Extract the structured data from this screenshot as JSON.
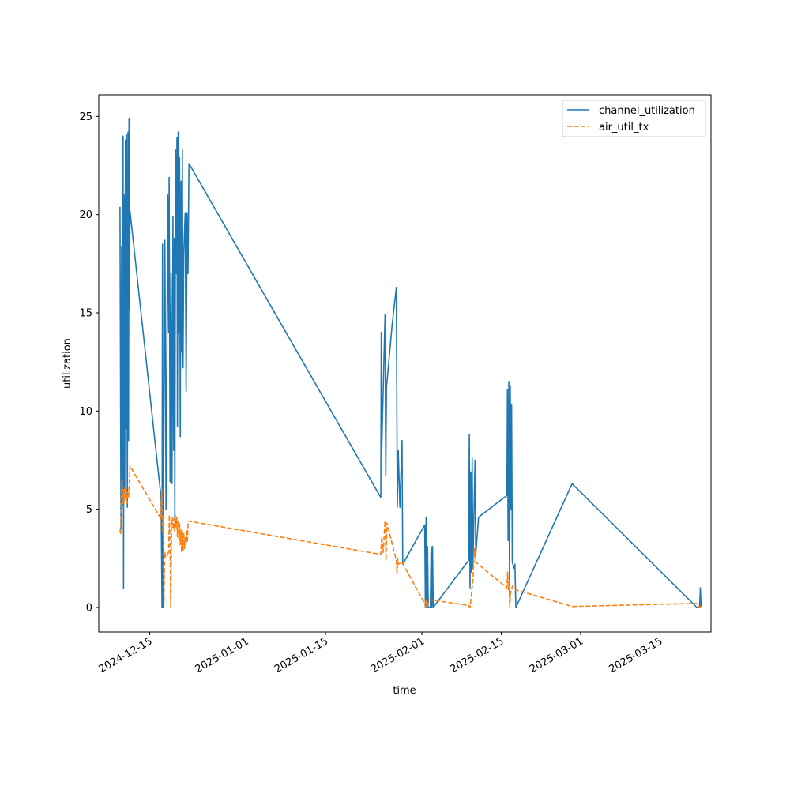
{
  "chart_data": {
    "type": "line",
    "title": "",
    "xlabel": "time",
    "ylabel": "utilization",
    "xlim": [
      "2024-12-06",
      "2025-03-24"
    ],
    "ylim": [
      -1.25,
      26.1
    ],
    "x_ticks": [
      "2024-12-15",
      "2025-01-01",
      "2025-01-15",
      "2025-02-01",
      "2025-02-15",
      "2025-03-01",
      "2025-03-15"
    ],
    "y_ticks": [
      0,
      5,
      10,
      15,
      20,
      25
    ],
    "grid": false,
    "legend_position": "top-right",
    "series": [
      {
        "name": "channel_utilization",
        "color": "#1f77b4",
        "style": "solid",
        "points": [
          [
            "2024-12-09 18:00",
            20.4
          ],
          [
            "2024-12-09 22:00",
            4.0
          ],
          [
            "2024-12-10 01:00",
            18.4
          ],
          [
            "2024-12-10 04:00",
            5.2
          ],
          [
            "2024-12-10 07:00",
            24.0
          ],
          [
            "2024-12-10 09:00",
            0.95
          ],
          [
            "2024-12-10 11:00",
            21.0
          ],
          [
            "2024-12-10 14:00",
            6.0
          ],
          [
            "2024-12-10 17:00",
            23.8
          ],
          [
            "2024-12-10 19:00",
            9.1
          ],
          [
            "2024-12-10 22:00",
            24.1
          ],
          [
            "2024-12-11 01:00",
            5.1
          ],
          [
            "2024-12-11 04:00",
            24.2
          ],
          [
            "2024-12-11 06:00",
            8.5
          ],
          [
            "2024-12-11 08:00",
            24.9
          ],
          [
            "2024-12-11 10:00",
            15.2
          ],
          [
            "2024-12-11 12:00",
            20.2
          ],
          [
            "2024-12-17 00:00",
            5.6
          ],
          [
            "2024-12-17 04:00",
            0.0
          ],
          [
            "2024-12-17 06:00",
            18.5
          ],
          [
            "2024-12-17 09:00",
            0.0
          ],
          [
            "2024-12-17 12:00",
            10.2
          ],
          [
            "2024-12-17 16:00",
            18.7
          ],
          [
            "2024-12-17 21:00",
            5.0
          ],
          [
            "2024-12-18 04:00",
            21.0
          ],
          [
            "2024-12-18 08:00",
            14.0
          ],
          [
            "2024-12-18 10:00",
            21.9
          ],
          [
            "2024-12-18 14:00",
            6.4
          ],
          [
            "2024-12-18 18:00",
            17.0
          ],
          [
            "2024-12-18 22:00",
            6.3
          ],
          [
            "2024-12-19 02:00",
            19.9
          ],
          [
            "2024-12-19 05:00",
            8.0
          ],
          [
            "2024-12-19 08:00",
            18.8
          ],
          [
            "2024-12-19 10:00",
            4.0
          ],
          [
            "2024-12-19 13:00",
            23.3
          ],
          [
            "2024-12-19 16:00",
            17.0
          ],
          [
            "2024-12-19 19:00",
            23.9
          ],
          [
            "2024-12-19 21:00",
            9.2
          ],
          [
            "2024-12-20 00:00",
            24.2
          ],
          [
            "2024-12-20 03:00",
            14.0
          ],
          [
            "2024-12-20 06:00",
            22.9
          ],
          [
            "2024-12-20 09:00",
            8.7
          ],
          [
            "2024-12-20 12:00",
            21.7
          ],
          [
            "2024-12-20 15:00",
            13.0
          ],
          [
            "2024-12-20 18:00",
            23.3
          ],
          [
            "2024-12-20 21:00",
            12.2
          ],
          [
            "2024-12-21 00:00",
            18.0
          ],
          [
            "2024-12-21 06:00",
            20.1
          ],
          [
            "2024-12-21 10:00",
            11.0
          ],
          [
            "2024-12-21 14:00",
            20.1
          ],
          [
            "2024-12-21 18:00",
            17.0
          ],
          [
            "2024-12-21 22:00",
            22.6
          ],
          [
            "2025-01-24 18:00",
            5.6
          ],
          [
            "2025-01-24 20:00",
            14.0
          ],
          [
            "2025-01-24 22:00",
            8.0
          ],
          [
            "2025-01-25 12:00",
            14.9
          ],
          [
            "2025-01-25 15:00",
            6.7
          ],
          [
            "2025-01-25 18:00",
            11.2
          ],
          [
            "2025-01-26 18:00",
            14.4
          ],
          [
            "2025-01-27 12:00",
            16.3
          ],
          [
            "2025-01-27 16:00",
            5.1
          ],
          [
            "2025-01-27 20:00",
            8.0
          ],
          [
            "2025-01-28 03:00",
            5.1
          ],
          [
            "2025-01-28 12:00",
            8.5
          ],
          [
            "2025-01-28 15:00",
            2.2
          ],
          [
            "2025-02-01 12:00",
            4.2
          ],
          [
            "2025-02-01 15:00",
            0.0
          ],
          [
            "2025-02-01 18:00",
            4.6
          ],
          [
            "2025-02-01 21:00",
            0.0
          ],
          [
            "2025-02-02 00:00",
            3.1
          ],
          [
            "2025-02-02 03:00",
            0.0
          ],
          [
            "2025-02-02 12:00",
            0.0
          ],
          [
            "2025-02-02 15:00",
            3.1
          ],
          [
            "2025-02-02 18:00",
            0.0
          ],
          [
            "2025-02-02 21:00",
            3.1
          ],
          [
            "2025-02-03 00:00",
            0.0
          ],
          [
            "2025-02-09 06:00",
            2.4
          ],
          [
            "2025-02-09 09:00",
            8.8
          ],
          [
            "2025-02-09 12:00",
            1.0
          ],
          [
            "2025-02-09 15:00",
            6.9
          ],
          [
            "2025-02-09 18:00",
            1.8
          ],
          [
            "2025-02-09 21:00",
            7.6
          ],
          [
            "2025-02-10 00:00",
            2.0
          ],
          [
            "2025-02-10 09:00",
            7.5
          ],
          [
            "2025-02-10 12:00",
            2.7
          ],
          [
            "2025-02-11 00:00",
            4.6
          ],
          [
            "2025-02-16 00:00",
            5.7
          ],
          [
            "2025-02-16 02:00",
            11.1
          ],
          [
            "2025-02-16 05:00",
            3.4
          ],
          [
            "2025-02-16 08:00",
            11.5
          ],
          [
            "2025-02-16 11:00",
            0.5
          ],
          [
            "2025-02-16 14:00",
            11.3
          ],
          [
            "2025-02-16 17:00",
            5.0
          ],
          [
            "2025-02-16 20:00",
            10.3
          ],
          [
            "2025-02-16 23:00",
            2.3
          ],
          [
            "2025-02-17 06:00",
            2.0
          ],
          [
            "2025-02-17 10:00",
            2.2
          ],
          [
            "2025-02-17 14:00",
            0.0
          ],
          [
            "2025-02-27 12:00",
            6.3
          ],
          [
            "2025-03-21 12:00",
            0.0
          ],
          [
            "2025-03-22 00:00",
            0.0
          ],
          [
            "2025-03-22 03:00",
            1.0
          ],
          [
            "2025-03-22 06:00",
            0.05
          ]
        ]
      },
      {
        "name": "air_util_tx",
        "color": "#ff7f0e",
        "style": "dashed",
        "points": [
          [
            "2024-12-09 18:00",
            4.0
          ],
          [
            "2024-12-09 21:00",
            3.7
          ],
          [
            "2024-12-10 00:00",
            5.8
          ],
          [
            "2024-12-10 03:00",
            6.5
          ],
          [
            "2024-12-10 06:00",
            5.2
          ],
          [
            "2024-12-10 09:00",
            6.0
          ],
          [
            "2024-12-10 12:00",
            5.4
          ],
          [
            "2024-12-10 15:00",
            6.1
          ],
          [
            "2024-12-10 18:00",
            5.5
          ],
          [
            "2024-12-10 21:00",
            6.0
          ],
          [
            "2024-12-11 00:00",
            5.3
          ],
          [
            "2024-12-11 03:00",
            5.9
          ],
          [
            "2024-12-11 06:00",
            5.6
          ],
          [
            "2024-12-11 09:00",
            6.2
          ],
          [
            "2024-12-11 12:00",
            7.2
          ],
          [
            "2024-12-17 00:00",
            4.5
          ],
          [
            "2024-12-17 03:00",
            6.0
          ],
          [
            "2024-12-17 06:00",
            3.9
          ],
          [
            "2024-12-17 09:00",
            4.7
          ],
          [
            "2024-12-17 12:00",
            0.1
          ],
          [
            "2024-12-17 15:00",
            2.8
          ],
          [
            "2024-12-17 20:00",
            2.6
          ],
          [
            "2024-12-18 08:00",
            2.8
          ],
          [
            "2024-12-18 11:00",
            4.7
          ],
          [
            "2024-12-18 14:00",
            2.9
          ],
          [
            "2024-12-18 17:00",
            0.0
          ],
          [
            "2024-12-18 20:00",
            4.1
          ],
          [
            "2024-12-19 00:00",
            4.6
          ],
          [
            "2024-12-19 03:00",
            4.0
          ],
          [
            "2024-12-19 06:00",
            4.5
          ],
          [
            "2024-12-19 09:00",
            3.9
          ],
          [
            "2024-12-19 12:00",
            4.7
          ],
          [
            "2024-12-19 15:00",
            4.1
          ],
          [
            "2024-12-19 18:00",
            4.6
          ],
          [
            "2024-12-19 21:00",
            3.6
          ],
          [
            "2024-12-20 00:00",
            4.4
          ],
          [
            "2024-12-20 03:00",
            3.5
          ],
          [
            "2024-12-20 06:00",
            4.3
          ],
          [
            "2024-12-20 09:00",
            3.2
          ],
          [
            "2024-12-20 12:00",
            4.0
          ],
          [
            "2024-12-20 15:00",
            2.8
          ],
          [
            "2024-12-20 18:00",
            3.9
          ],
          [
            "2024-12-20 21:00",
            2.9
          ],
          [
            "2024-12-21 00:00",
            3.8
          ],
          [
            "2024-12-21 03:00",
            3.0
          ],
          [
            "2024-12-21 06:00",
            3.6
          ],
          [
            "2024-12-21 09:00",
            3.2
          ],
          [
            "2024-12-21 12:00",
            3.9
          ],
          [
            "2024-12-21 15:00",
            3.3
          ],
          [
            "2024-12-21 18:00",
            4.4
          ],
          [
            "2025-01-24 18:00",
            2.7
          ],
          [
            "2025-01-24 22:00",
            3.6
          ],
          [
            "2025-01-25 04:00",
            2.8
          ],
          [
            "2025-01-25 12:00",
            4.4
          ],
          [
            "2025-01-25 16:00",
            2.4
          ],
          [
            "2025-01-25 20:00",
            4.3
          ],
          [
            "2025-01-27 12:00",
            2.4
          ],
          [
            "2025-01-27 15:00",
            1.7
          ],
          [
            "2025-01-27 18:00",
            2.5
          ],
          [
            "2025-01-27 21:00",
            2.2
          ],
          [
            "2025-01-28 12:00",
            2.3
          ],
          [
            "2025-02-01 12:00",
            0.2
          ],
          [
            "2025-02-01 15:00",
            0.0
          ],
          [
            "2025-02-01 18:00",
            0.4
          ],
          [
            "2025-02-02 00:00",
            0.0
          ],
          [
            "2025-02-02 06:00",
            0.4
          ],
          [
            "2025-02-09 06:00",
            0.1
          ],
          [
            "2025-02-09 12:00",
            0.0
          ],
          [
            "2025-02-10 00:00",
            1.4
          ],
          [
            "2025-02-10 06:00",
            3.0
          ],
          [
            "2025-02-10 12:00",
            2.3
          ],
          [
            "2025-02-16 00:00",
            1.0
          ],
          [
            "2025-02-16 03:00",
            1.8
          ],
          [
            "2025-02-16 06:00",
            0.9
          ],
          [
            "2025-02-16 09:00",
            1.3
          ],
          [
            "2025-02-16 12:00",
            0.0
          ],
          [
            "2025-02-16 15:00",
            0.7
          ],
          [
            "2025-02-17 00:00",
            1.1
          ],
          [
            "2025-02-17 12:00",
            0.9
          ],
          [
            "2025-02-27 12:00",
            0.05
          ],
          [
            "2025-03-21 00:00",
            0.2
          ],
          [
            "2025-03-21 12:00",
            0.2
          ],
          [
            "2025-03-22 00:00",
            0.0
          ],
          [
            "2025-03-22 06:00",
            0.05
          ]
        ]
      }
    ]
  }
}
